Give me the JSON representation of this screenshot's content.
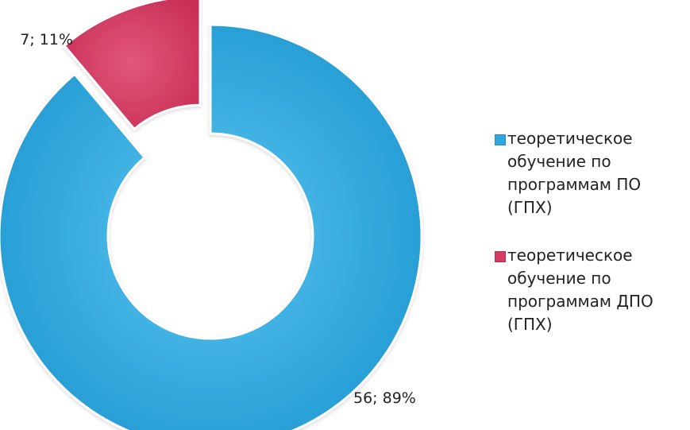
{
  "chart_data": {
    "type": "pie",
    "style": "doughnut",
    "start_angle_deg": 0,
    "exploded_slice": "теоретическое обучение по программам ДПО (ГПХ)",
    "slices": [
      {
        "label": "теоретическое обучение по программам ПО (ГПХ)",
        "value": 56,
        "percent": 89,
        "data_label": "56; 89%",
        "color": "#2ea7df"
      },
      {
        "label": "теоретическое обучение по программам ДПО (ГПХ)",
        "value": 7,
        "percent": 11,
        "data_label": "7; 11%",
        "color": "#d53a62"
      }
    ],
    "legend_position": "right"
  }
}
